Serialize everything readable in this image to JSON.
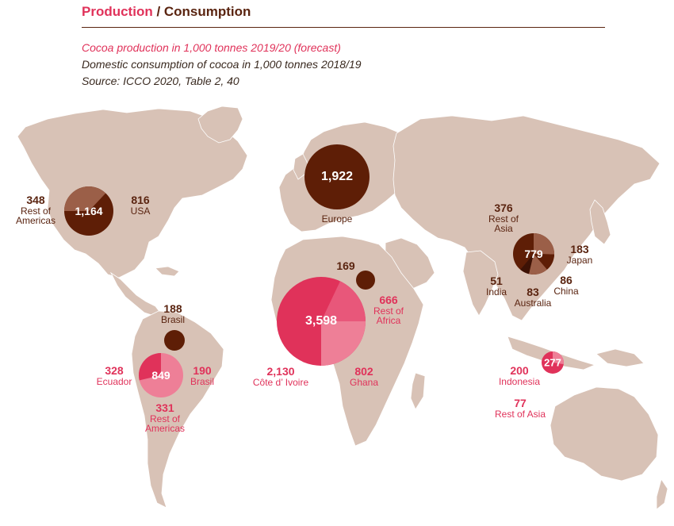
{
  "header": {
    "production": "Production",
    "separator": " / ",
    "consumption": "Consumption",
    "subtitle_production": "Cocoa production in 1,000 tonnes 2019/20 (forecast)",
    "subtitle_consumption": "Domestic consumption of cocoa in 1,000 tonnes 2018/19",
    "source": "Source: ICCO 2020, Table 2, 40"
  },
  "colors": {
    "land": "#d8c2b6",
    "consumption_dark": "#5e1e06",
    "consumption_light": "#9b5f48",
    "production_dark": "#e0325a",
    "production_light": "#ee7f97",
    "text_consumption": "#5a2410",
    "text_production": "#e0325a"
  },
  "map_data": {
    "consumption": {
      "north_america": {
        "total": "1,164",
        "usa": {
          "value": "816",
          "name": "USA"
        },
        "rest": {
          "value": "348",
          "name": "Rest of Americas"
        }
      },
      "europe": {
        "total": "1,922",
        "name": "Europe"
      },
      "north_africa": {
        "value": "169"
      },
      "brazil": {
        "value": "188",
        "name": "Brasil"
      },
      "asia": {
        "total": "779",
        "rest": {
          "value": "376",
          "name": "Rest of Asia"
        },
        "japan": {
          "value": "183",
          "name": "Japan"
        },
        "india": {
          "value": "51",
          "name": "India"
        },
        "australia": {
          "value": "83",
          "name": "Australia"
        },
        "china": {
          "value": "86",
          "name": "China"
        }
      }
    },
    "production": {
      "africa": {
        "total": "3,598",
        "cote_divoire": {
          "value": "2,130",
          "name": "Côte d’ Ivoire"
        },
        "ghana": {
          "value": "802",
          "name": "Ghana"
        },
        "rest": {
          "value": "666",
          "name": "Rest of Africa"
        }
      },
      "south_america": {
        "total": "849",
        "ecuador": {
          "value": "328",
          "name": "Ecuador"
        },
        "brazil": {
          "value": "190",
          "name": "Brasil"
        },
        "rest": {
          "value": "331",
          "name": "Rest of Americas"
        }
      },
      "asia": {
        "total": "277",
        "indonesia": {
          "value": "200",
          "name": "Indonesia"
        },
        "rest": {
          "value": "77",
          "name": "Rest of Asia"
        }
      }
    }
  }
}
